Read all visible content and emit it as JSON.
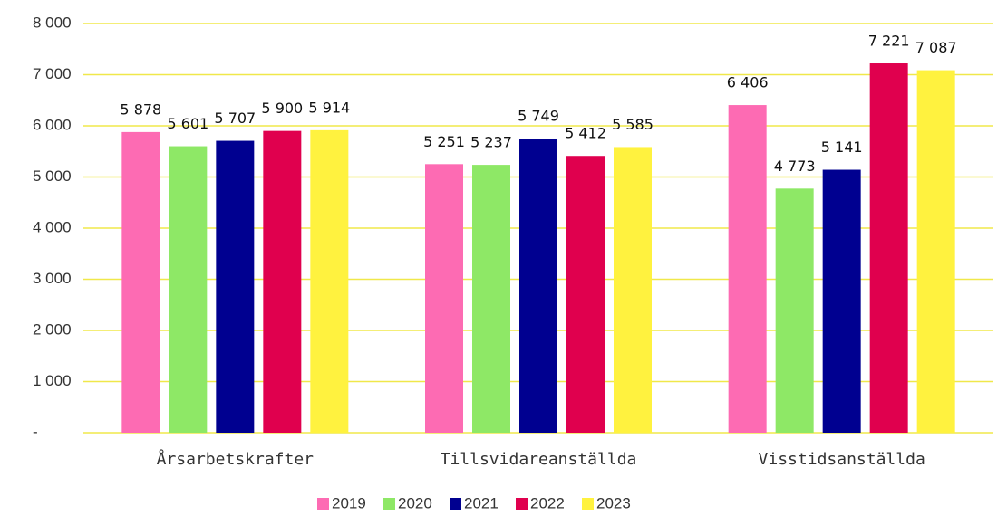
{
  "chart_data": {
    "type": "bar",
    "categories": [
      "Årsarbetskrafter",
      "Tillsvidareanställda",
      "Visstidsanställda"
    ],
    "series": [
      {
        "name": "2019",
        "color": "#fd6bb3",
        "values": [
          5878,
          5251,
          6406
        ],
        "value_labels": [
          "5 878",
          "5 251",
          "6 406"
        ]
      },
      {
        "name": "2020",
        "color": "#8ee866",
        "values": [
          5601,
          5237,
          4773
        ],
        "value_labels": [
          "5 601",
          "5 237",
          "4 773"
        ]
      },
      {
        "name": "2021",
        "color": "#000090",
        "values": [
          5707,
          5749,
          5141
        ],
        "value_labels": [
          "5 707",
          "5 749",
          "5 141"
        ]
      },
      {
        "name": "2022",
        "color": "#e0004e",
        "values": [
          5900,
          5412,
          7221
        ],
        "value_labels": [
          "5 900",
          "5 412",
          "7 221"
        ]
      },
      {
        "name": "2023",
        "color": "#fff23f",
        "values": [
          5914,
          5585,
          7087
        ],
        "value_labels": [
          "5 914",
          "5 585",
          "7 087"
        ]
      }
    ],
    "ylim": [
      0,
      8000
    ],
    "yticks": [
      {
        "value": 0,
        "label": "-"
      },
      {
        "value": 1000,
        "label": "1 000"
      },
      {
        "value": 2000,
        "label": "2 000"
      },
      {
        "value": 3000,
        "label": "3 000"
      },
      {
        "value": 4000,
        "label": "4 000"
      },
      {
        "value": 5000,
        "label": "5 000"
      },
      {
        "value": 6000,
        "label": "6 000"
      },
      {
        "value": 7000,
        "label": "7 000"
      },
      {
        "value": 8000,
        "label": "8 000"
      }
    ],
    "grid": true,
    "grid_color": "#f0e84a",
    "legend": "bottom"
  }
}
